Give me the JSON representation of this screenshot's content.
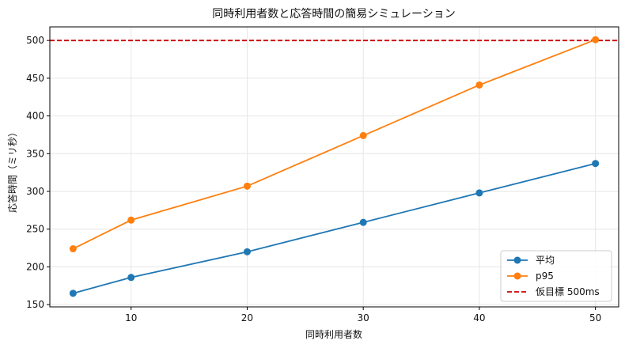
{
  "chart_data": {
    "type": "line",
    "title": "同時利用者数と応答時間の簡易シミュレーション",
    "xlabel": "同時利用者数",
    "ylabel": "応答時間（ミリ秒）",
    "x": [
      5,
      10,
      20,
      30,
      40,
      50
    ],
    "xticks": [
      10,
      20,
      30,
      40,
      50
    ],
    "yticks": [
      150,
      200,
      250,
      300,
      350,
      400,
      450,
      500
    ],
    "xlim": [
      3,
      52
    ],
    "ylim": [
      147,
      518
    ],
    "grid": true,
    "legend_position": "bottom-right",
    "series": [
      {
        "name": "平均",
        "color": "#1f77b4",
        "values": [
          165,
          186,
          220,
          259,
          298,
          337
        ]
      },
      {
        "name": "p95",
        "color": "#ff7f0e",
        "values": [
          224,
          262,
          307,
          374,
          441,
          501
        ]
      }
    ],
    "reference_line": {
      "name": "仮目標 500ms",
      "y": 500,
      "color": "#cc0000",
      "style": "dashed"
    }
  }
}
